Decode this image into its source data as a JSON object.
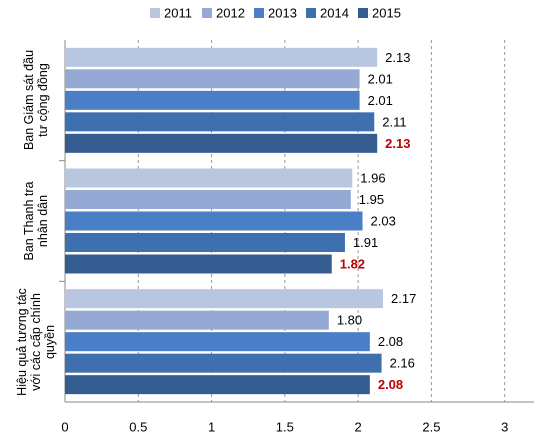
{
  "chart_data": {
    "type": "bar",
    "orientation": "horizontal",
    "categories": [
      "Ban Giám sát đầu tư cộng đồng",
      "Ban Thanh tra nhân dân",
      "Hiệu quả tương tác với các cấp chính quyền"
    ],
    "series": [
      {
        "name": "2011",
        "color": "#b8c6e0",
        "values": [
          2.13,
          1.96,
          2.17
        ],
        "value_labels": [
          "2.13",
          "1.96",
          "2.17"
        ]
      },
      {
        "name": "2012",
        "color": "#94a9d3",
        "values": [
          2.01,
          1.95,
          1.8
        ],
        "value_labels": [
          "2.01",
          "1.95",
          "1.80"
        ]
      },
      {
        "name": "2013",
        "color": "#4a7ec6",
        "values": [
          2.01,
          2.03,
          2.08
        ],
        "value_labels": [
          "2.01",
          "2.03",
          "2.08"
        ]
      },
      {
        "name": "2014",
        "color": "#3e6fae",
        "values": [
          2.11,
          1.91,
          2.16
        ],
        "value_labels": [
          "2.11",
          "1.91",
          "2.16"
        ]
      },
      {
        "name": "2015",
        "color": "#355c91",
        "values": [
          2.13,
          1.82,
          2.08
        ],
        "value_labels": [
          "2.13",
          "1.82",
          "2.08"
        ],
        "label_color": "#c00000"
      }
    ],
    "xlim": [
      0,
      3.2
    ],
    "xticks": [
      0,
      0.5,
      1,
      1.5,
      2,
      2.5,
      3
    ],
    "grid": true,
    "legend": "top"
  }
}
